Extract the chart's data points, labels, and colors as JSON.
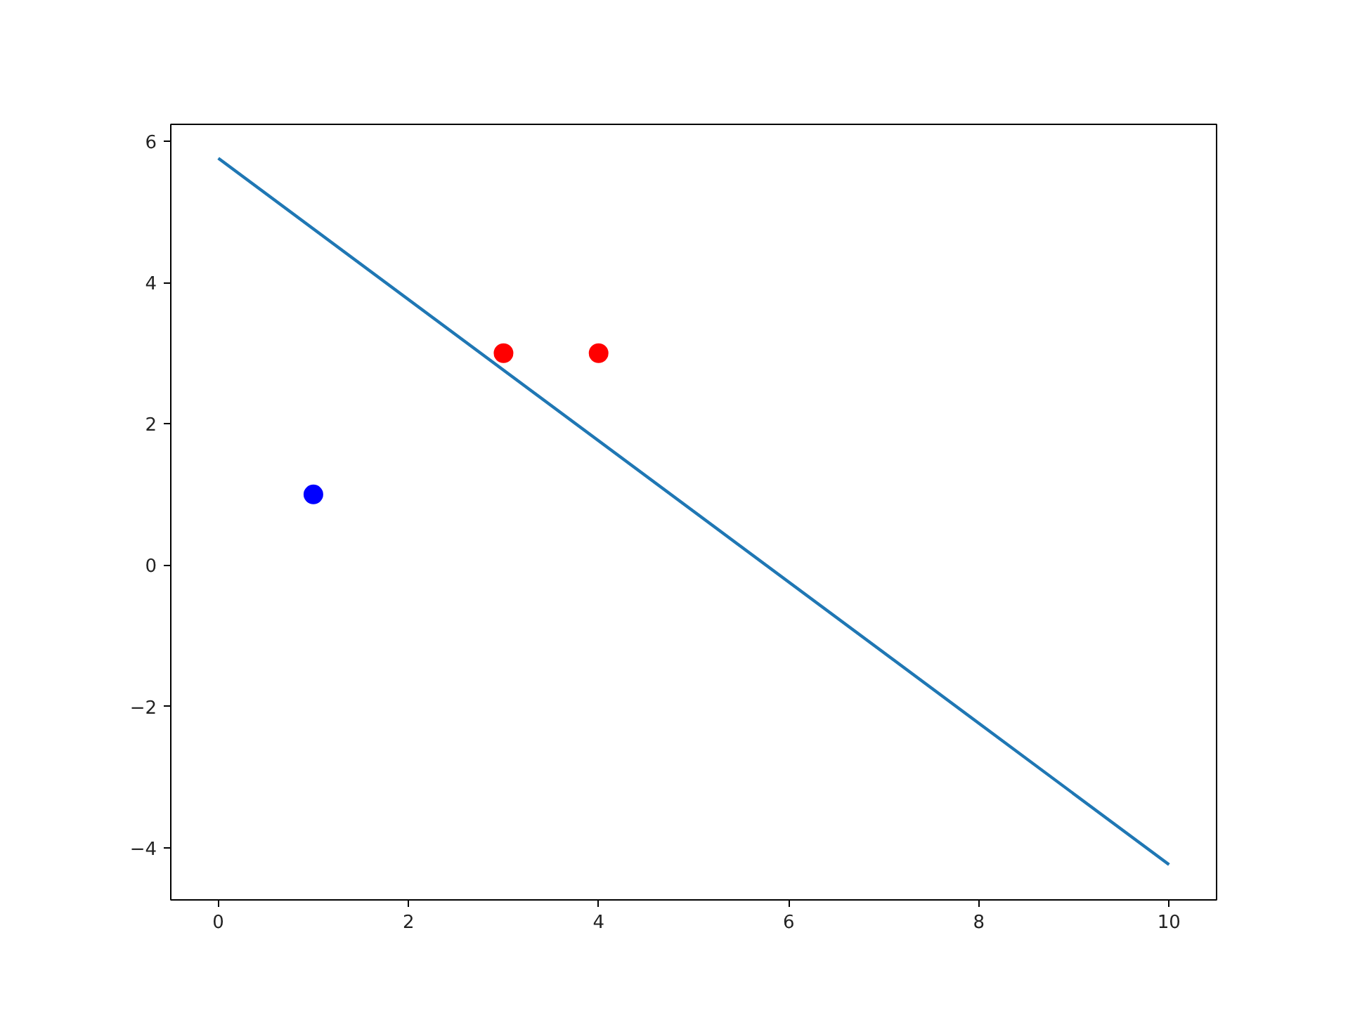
{
  "chart_data": {
    "type": "scatter",
    "xlim": [
      -0.5,
      10.5
    ],
    "ylim": [
      -4.74,
      6.24
    ],
    "xticks": [
      0,
      2,
      4,
      6,
      8,
      10
    ],
    "yticks": [
      {
        "value": -4,
        "label": "−4"
      },
      {
        "value": -2,
        "label": "−2"
      },
      0,
      2,
      4,
      6
    ],
    "grid": false,
    "series": [
      {
        "marker": "circle",
        "x": [
          1,
          3,
          4
        ],
        "values": [
          1,
          3,
          3
        ],
        "colors": [
          "#0000ff",
          "#ff0000",
          "#ff0000"
        ]
      },
      {
        "type": "line",
        "x": [
          0,
          10
        ],
        "values": [
          5.76,
          -4.24
        ],
        "color": "#1f77b4",
        "line_style": "solid"
      }
    ]
  }
}
